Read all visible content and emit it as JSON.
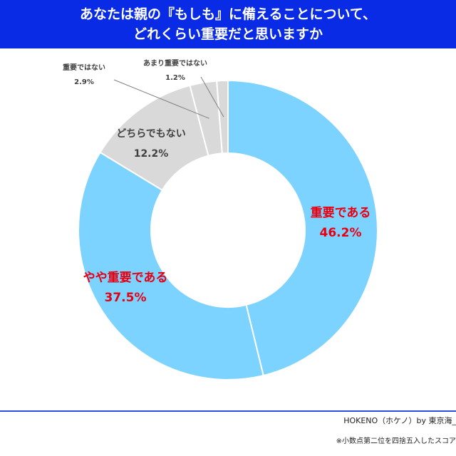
{
  "header": {
    "title_line1": "あなたは親の『もしも』に備えることについて、",
    "title_line2": "どれくらい重要だと思いますか"
  },
  "footer": {
    "source": "HOKENO（ホケノ）by 東京海_",
    "note": "※小数点第二位を四捨五入したスコア"
  },
  "chart_data": {
    "type": "pie",
    "donut": true,
    "labels": [
      "重要である",
      "やや重要である",
      "どちらでもない",
      "重要ではない",
      "あまり重要ではない"
    ],
    "values": [
      46.2,
      37.5,
      12.2,
      2.9,
      1.2
    ],
    "value_labels": [
      "46.2%",
      "37.5%",
      "12.2%",
      "2.9%",
      "1.2%"
    ],
    "colors": [
      "#7dd3ff",
      "#7dd3ff",
      "#d9d9d9",
      "#d9d9d9",
      "#d9d9d9"
    ],
    "label_colors": [
      "#e60012",
      "#e60012",
      "#404040",
      "#404040",
      "#404040"
    ],
    "start": "top, clockwise"
  }
}
